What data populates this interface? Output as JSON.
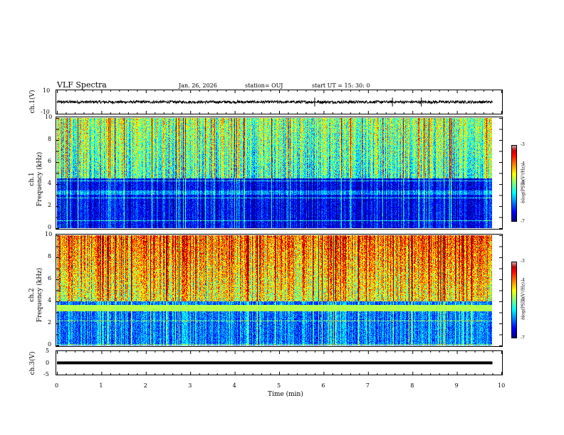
{
  "header": {
    "title": "VLF Spectra",
    "date": "Jan. 26, 2026",
    "station": "station= OUJ",
    "start": "start  UT =   15: 30: 0"
  },
  "colors": {
    "trace": "#000000",
    "spec_bg": "#00007f"
  },
  "chart_data": [
    {
      "type": "line",
      "ylabel": "ch.1(V)",
      "ylim": [
        -10,
        10
      ],
      "yticks": [
        "10",
        "-10"
      ],
      "x_range_min": [
        0,
        9.8
      ],
      "baseline_v": 0,
      "noise_amplitude_v": 1.2,
      "spikes_at_min": [
        5.8,
        7.55,
        8.2
      ]
    },
    {
      "type": "heatmap",
      "ylabel": [
        "ch.1",
        "Frequency  (kHz)"
      ],
      "ylim": [
        0,
        10
      ],
      "yticks": [
        "0",
        "2",
        "4",
        "6",
        "8",
        "10"
      ],
      "colorbar": {
        "range": [
          -7,
          -3
        ],
        "ticks": [
          "-3",
          "-4",
          "-5",
          "-6",
          "-7"
        ],
        "label": "log(PSD)(V²/Hz)"
      },
      "description_levels": {
        "low_band_khz": [
          0,
          4.5
        ],
        "high_band_khz": [
          4.5,
          10
        ],
        "mean_log_psd_high": -5.2,
        "mean_log_psd_low": -6.3
      }
    },
    {
      "type": "heatmap",
      "ylabel": [
        "ch.2",
        "Frequency  (kHz)"
      ],
      "ylim": [
        0,
        10
      ],
      "yticks": [
        "0",
        "2",
        "4",
        "6",
        "8",
        "10"
      ],
      "colorbar": {
        "range": [
          -7,
          -3
        ],
        "ticks": [
          "-3",
          "-4",
          "-5",
          "-6",
          "-7"
        ],
        "label": "log(PSD)(V²/Hz)"
      },
      "description_levels": {
        "band_khz": [
          3.2,
          3.6
        ],
        "mean_log_psd_high": -4.0,
        "mean_log_psd_low": -5.8
      }
    },
    {
      "type": "line",
      "ylabel": "ch.3(V)",
      "ylim": [
        -5,
        5
      ],
      "yticks": [
        "5",
        "0",
        "-5"
      ],
      "value_v": 0,
      "x_range_min": [
        0,
        9.8
      ]
    }
  ],
  "xaxis": {
    "label": "Time  (min)",
    "range": [
      0,
      10
    ],
    "ticks": [
      "0",
      "1",
      "2",
      "3",
      "4",
      "5",
      "6",
      "7",
      "8",
      "9",
      "10"
    ]
  }
}
